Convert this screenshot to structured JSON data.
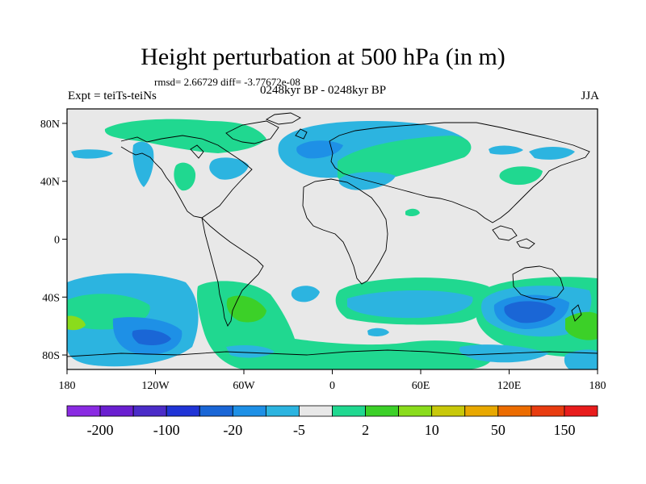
{
  "title": "Height perturbation at 500 hPa (in m)",
  "stats": "rmsd= 2.66729 diff= -3.77672e-08",
  "left_label": "Expt = teiTs-teiNs",
  "center_label": "0248kyr BP - 0248kyr BP",
  "right_label": "JJA",
  "axes": {
    "lon_ticks": [
      "180",
      "120W",
      "60W",
      "0",
      "60E",
      "120E",
      "180"
    ],
    "lat_ticks": [
      "80N",
      "40N",
      "0",
      "40S",
      "80S"
    ]
  },
  "colorbar": {
    "colors": [
      "#8a2be2",
      "#6a1fd0",
      "#4b2cc8",
      "#2034d6",
      "#1a66d6",
      "#1e90e6",
      "#2cb4e0",
      "#e8e8e8",
      "#20d890",
      "#3cd028",
      "#8adc1c",
      "#c8c80a",
      "#e8a800",
      "#ec6c00",
      "#e83c10",
      "#e81c1c"
    ],
    "labels": [
      "-200",
      "-100",
      "-20",
      "-5",
      "2",
      "10",
      "50",
      "150"
    ]
  },
  "map_colors": {
    "background": "#e8e8e8",
    "blue_light": "#2cb4e0",
    "blue_mid": "#1e90e6",
    "blue_dark": "#1a66d6",
    "green": "#20d890",
    "green_bright": "#3cd028",
    "yellow_green": "#8adc1c"
  }
}
